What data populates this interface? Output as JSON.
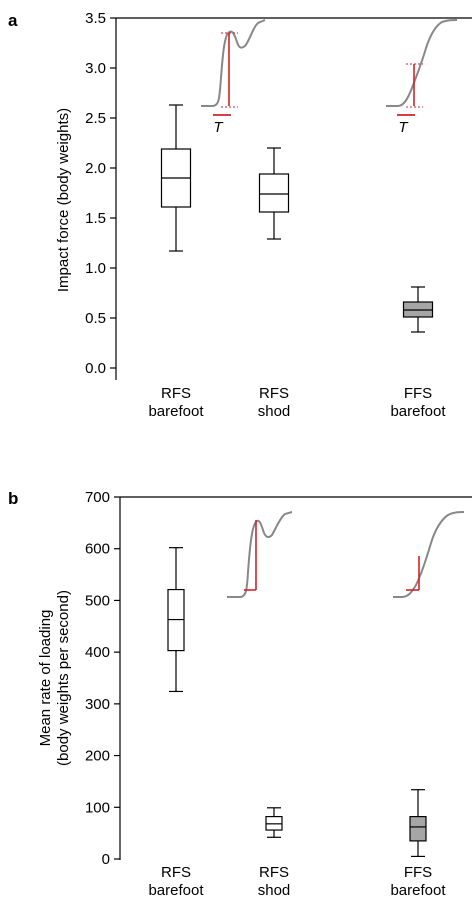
{
  "colors": {
    "axis": "#000000",
    "box_open": "#ffffff",
    "box_filled": "#a6a6a6",
    "trace": "#888888",
    "marker": "#d2232a"
  },
  "chart_data": [
    {
      "panel": "a",
      "type": "box",
      "ylabel": "Impact force (body weights)",
      "ylim": [
        0,
        3.5
      ],
      "yticks": [
        "0.0",
        "0.5",
        "1.0",
        "1.5",
        "2.0",
        "2.5",
        "3.0",
        "3.5"
      ],
      "categories": [
        {
          "line1": "RFS",
          "line2": "barefoot"
        },
        {
          "line1": "RFS",
          "line2": "shod"
        },
        {
          "line1": "FFS",
          "line2": "barefoot"
        }
      ],
      "boxes": [
        {
          "min": 1.17,
          "q1": 1.61,
          "median": 1.9,
          "q3": 2.19,
          "max": 2.63,
          "filled": false
        },
        {
          "min": 1.29,
          "q1": 1.56,
          "median": 1.74,
          "q3": 1.94,
          "max": 2.2,
          "filled": false
        },
        {
          "min": 0.36,
          "q1": 0.51,
          "median": 0.58,
          "q3": 0.66,
          "max": 0.81,
          "filled": true
        }
      ],
      "insets": [
        {
          "symbol": "T",
          "style": "peak"
        },
        {
          "symbol": "T",
          "style": "smooth"
        }
      ]
    },
    {
      "panel": "b",
      "type": "box",
      "ylabel_line1": "Mean rate of loading",
      "ylabel_line2": "(body weights per second)",
      "ylim": [
        0,
        700
      ],
      "yticks": [
        "0",
        "100",
        "200",
        "300",
        "400",
        "500",
        "600",
        "700"
      ],
      "categories": [
        {
          "line1": "RFS",
          "line2": "barefoot"
        },
        {
          "line1": "RFS",
          "line2": "shod"
        },
        {
          "line1": "FFS",
          "line2": "barefoot"
        }
      ],
      "boxes": [
        {
          "min": 324,
          "q1": 403,
          "median": 463,
          "q3": 521,
          "max": 602,
          "filled": false
        },
        {
          "min": 42,
          "q1": 56,
          "median": 68,
          "q3": 82,
          "max": 99,
          "filled": false
        },
        {
          "min": 5,
          "q1": 35,
          "median": 62,
          "q3": 82,
          "max": 134,
          "filled": true
        }
      ],
      "insets": [
        {
          "style": "peak"
        },
        {
          "style": "smooth"
        }
      ]
    }
  ]
}
